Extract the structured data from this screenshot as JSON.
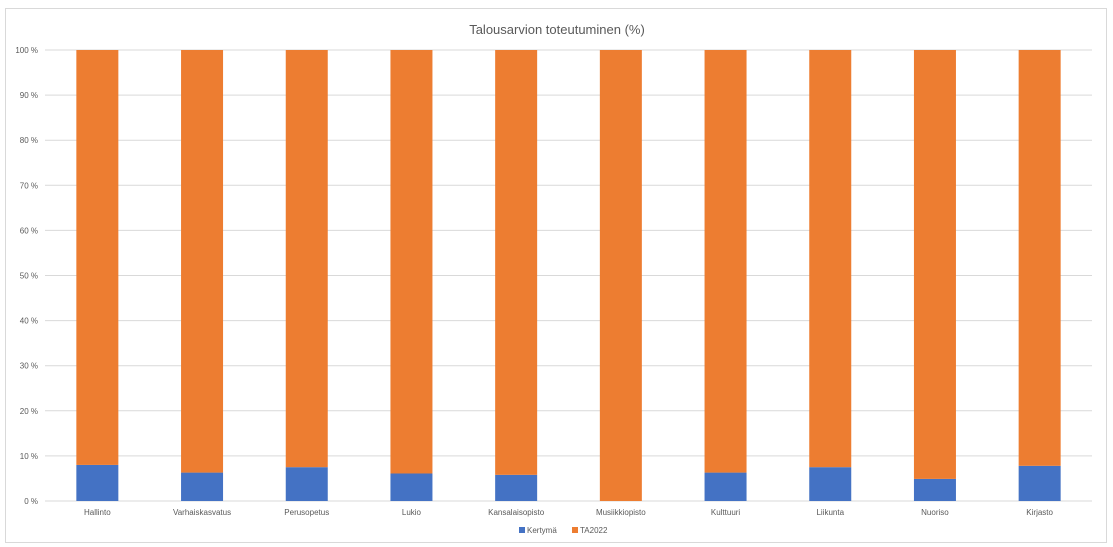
{
  "chart_data": {
    "type": "bar",
    "stacked": "percent",
    "title": "Talousarvion toteutuminen (%)",
    "xlabel": "",
    "ylabel": "",
    "ylim": [
      0,
      100
    ],
    "yticks": [
      "0 %",
      "10 %",
      "20 %",
      "30 %",
      "40 %",
      "50 %",
      "60 %",
      "70 %",
      "80 %",
      "90 %",
      "100 %"
    ],
    "categories": [
      "Hallinto",
      "Varhaiskasvatus",
      "Perusopetus",
      "Lukio",
      "Kansalaisopisto",
      "Musiikkiopisto",
      "Kulttuuri",
      "Liikunta",
      "Nuoriso",
      "Kirjasto"
    ],
    "series": [
      {
        "name": "Kertymä",
        "color": "#4472c4",
        "values": [
          8.0,
          6.3,
          7.5,
          6.1,
          5.8,
          0.0,
          6.3,
          7.5,
          4.9,
          7.8
        ]
      },
      {
        "name": "TA2022",
        "color": "#ed7d31",
        "values": [
          92.0,
          93.7,
          92.5,
          93.9,
          94.2,
          100.0,
          93.7,
          92.5,
          95.1,
          92.2
        ]
      }
    ],
    "grid": true,
    "legend": "bottom"
  }
}
